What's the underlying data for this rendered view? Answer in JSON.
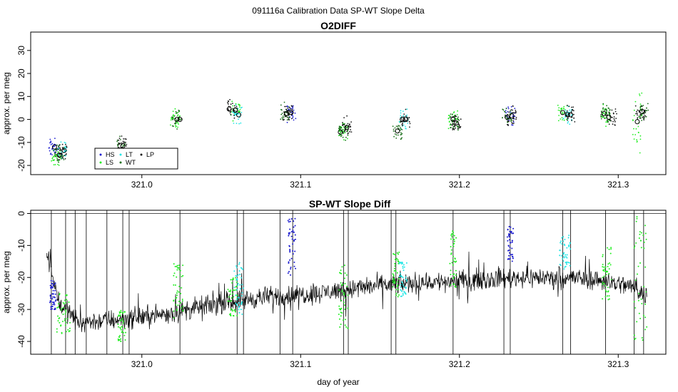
{
  "figure": {
    "title": "091116a   Calibration Data SP-WT Slope Delta",
    "xlabel": "day of year"
  },
  "colors": {
    "HS": "#1a1ad0",
    "LS": "#22ee22",
    "LT": "#22e6e6",
    "WT": "#1a6e1a",
    "LP": "#1a1a1a",
    "diff_line": "#000000"
  },
  "chart_data": [
    {
      "type": "scatter",
      "title": "O2DIFF",
      "xlabel": "",
      "ylabel": "approx. per meg",
      "xlim": [
        320.93,
        321.33
      ],
      "ylim": [
        -24,
        38
      ],
      "xticks": [
        "321.0",
        "321.1",
        "321.2",
        "321.3"
      ],
      "xtick_values": [
        321.0,
        321.1,
        321.2,
        321.3
      ],
      "yticks": [
        "-20",
        "-10",
        "0",
        "10",
        "20",
        "30"
      ],
      "ytick_values": [
        -20,
        -10,
        0,
        10,
        20,
        30
      ],
      "legend": {
        "placement": "bottom-left",
        "entries": [
          "HS",
          "LS",
          "LT",
          "WT",
          "LP"
        ]
      },
      "series": [
        {
          "name": "HS",
          "points": [
            [
              320.944,
              -12.5
            ],
            [
              321.094,
              3.0
            ],
            [
              321.232,
              1.5
            ]
          ]
        },
        {
          "name": "LS",
          "points": [
            [
              320.946,
              -16.0
            ],
            [
              321.021,
              0.0
            ],
            [
              321.059,
              4.0
            ],
            [
              321.127,
              -4.0
            ],
            [
              321.196,
              0.0
            ],
            [
              321.265,
              3.0
            ],
            [
              321.292,
              2.0
            ],
            [
              321.312,
              0.0
            ]
          ]
        },
        {
          "name": "LT",
          "points": [
            [
              320.95,
              -13.5
            ],
            [
              321.06,
              2.5
            ],
            [
              321.165,
              0.0
            ],
            [
              321.268,
              2.0
            ]
          ]
        },
        {
          "name": "WT",
          "points": [
            [
              320.948,
              -15.5
            ],
            [
              320.987,
              -11.5
            ],
            [
              321.022,
              0.0
            ],
            [
              321.09,
              2.5
            ],
            [
              321.127,
              -5.5
            ],
            [
              321.161,
              -5.5
            ],
            [
              321.197,
              -2.0
            ],
            [
              321.23,
              1.0
            ],
            [
              321.292,
              3.0
            ],
            [
              321.316,
              3.0
            ]
          ]
        },
        {
          "name": "LP",
          "points": [
            [
              320.95,
              -14.0
            ],
            [
              320.988,
              -11.0
            ],
            [
              321.057,
              4.5
            ],
            [
              321.092,
              3.0
            ],
            [
              321.129,
              -3.5
            ],
            [
              321.166,
              -0.5
            ],
            [
              321.198,
              -1.5
            ],
            [
              321.233,
              1.5
            ],
            [
              321.27,
              2.0
            ],
            [
              321.296,
              1.0
            ],
            [
              321.314,
              3.5
            ]
          ]
        }
      ],
      "means": [
        {
          "x": 320.945,
          "y": -12.0
        },
        {
          "x": 320.948,
          "y": -15.5
        },
        {
          "x": 320.951,
          "y": -13.5
        },
        {
          "x": 320.988,
          "y": -11.5
        },
        {
          "x": 321.022,
          "y": 0.0
        },
        {
          "x": 321.024,
          "y": 0.0
        },
        {
          "x": 321.055,
          "y": 4.5
        },
        {
          "x": 321.059,
          "y": 4.0
        },
        {
          "x": 321.061,
          "y": 2.0
        },
        {
          "x": 321.091,
          "y": 2.5
        },
        {
          "x": 321.094,
          "y": 3.0
        },
        {
          "x": 321.125,
          "y": -5.5
        },
        {
          "x": 321.129,
          "y": -3.5
        },
        {
          "x": 321.161,
          "y": -5.0
        },
        {
          "x": 321.164,
          "y": 0.0
        },
        {
          "x": 321.166,
          "y": 0.0
        },
        {
          "x": 321.196,
          "y": 0.0
        },
        {
          "x": 321.198,
          "y": -1.5
        },
        {
          "x": 321.23,
          "y": 1.0
        },
        {
          "x": 321.233,
          "y": 1.5
        },
        {
          "x": 321.265,
          "y": 3.0
        },
        {
          "x": 321.268,
          "y": 2.0
        },
        {
          "x": 321.27,
          "y": 2.0
        },
        {
          "x": 321.291,
          "y": 2.5
        },
        {
          "x": 321.294,
          "y": 1.0
        },
        {
          "x": 321.312,
          "y": -1.0
        },
        {
          "x": 321.315,
          "y": 3.5
        }
      ]
    },
    {
      "type": "line",
      "title": "SP-WT Slope Diff",
      "xlabel": "day of year",
      "ylabel": "approx. per meg",
      "xlim": [
        320.93,
        321.33
      ],
      "ylim": [
        -44,
        1
      ],
      "xticks": [
        "321.0",
        "321.1",
        "321.2",
        "321.3"
      ],
      "xtick_values": [
        321.0,
        321.1,
        321.2,
        321.3
      ],
      "yticks": [
        "-40",
        "-30",
        "-20",
        "-10",
        "0"
      ],
      "ytick_values": [
        -40,
        -30,
        -20,
        -10,
        0
      ],
      "baseline": [
        0,
        -20
      ],
      "trend": [
        [
          320.94,
          -12
        ],
        [
          320.948,
          -28
        ],
        [
          320.96,
          -34
        ],
        [
          320.99,
          -33
        ],
        [
          321.02,
          -31
        ],
        [
          321.05,
          -28
        ],
        [
          321.08,
          -26
        ],
        [
          321.11,
          -25
        ],
        [
          321.14,
          -23
        ],
        [
          321.16,
          -22
        ],
        [
          321.2,
          -21
        ],
        [
          321.24,
          -20
        ],
        [
          321.27,
          -20
        ],
        [
          321.29,
          -21
        ],
        [
          321.31,
          -23
        ],
        [
          321.318,
          -26
        ]
      ],
      "spikes_x": [
        320.943,
        320.952,
        320.958,
        320.965,
        320.978,
        320.988,
        320.992,
        321.024,
        321.06,
        321.064,
        321.087,
        321.095,
        321.127,
        321.13,
        321.157,
        321.16,
        321.196,
        321.228,
        321.232,
        321.265,
        321.27,
        321.292,
        321.31,
        321.316
      ],
      "overlay_segments": [
        {
          "name": "HS",
          "x": [
            320.942,
            320.946
          ],
          "y": [
            -30,
            -20
          ]
        },
        {
          "name": "LS",
          "x": [
            320.946,
            320.955
          ],
          "y": [
            -38,
            -25
          ]
        },
        {
          "name": "LS",
          "x": [
            320.985,
            320.99
          ],
          "y": [
            -40,
            -30
          ]
        },
        {
          "name": "LS",
          "x": [
            321.02,
            321.026
          ],
          "y": [
            -34,
            -15
          ]
        },
        {
          "name": "LS",
          "x": [
            321.054,
            321.06
          ],
          "y": [
            -32,
            -20
          ]
        },
        {
          "name": "LT",
          "x": [
            321.058,
            321.064
          ],
          "y": [
            -32,
            -15
          ]
        },
        {
          "name": "HS",
          "x": [
            321.092,
            321.097
          ],
          "y": [
            -20,
            -1
          ]
        },
        {
          "name": "LS",
          "x": [
            321.124,
            321.13
          ],
          "y": [
            -36,
            -15
          ]
        },
        {
          "name": "LS",
          "x": [
            321.158,
            321.162
          ],
          "y": [
            -26,
            -12
          ]
        },
        {
          "name": "LT",
          "x": [
            321.162,
            321.167
          ],
          "y": [
            -26,
            -15
          ]
        },
        {
          "name": "LS",
          "x": [
            321.194,
            321.198
          ],
          "y": [
            -23,
            -5
          ]
        },
        {
          "name": "HS",
          "x": [
            321.23,
            321.234
          ],
          "y": [
            -15,
            -4
          ]
        },
        {
          "name": "LT",
          "x": [
            321.263,
            321.27
          ],
          "y": [
            -18,
            -6
          ]
        },
        {
          "name": "LS",
          "x": [
            321.29,
            321.296
          ],
          "y": [
            -28,
            -10
          ]
        },
        {
          "name": "LS",
          "x": [
            321.31,
            321.318
          ],
          "y": [
            -40,
            0
          ]
        }
      ]
    }
  ]
}
